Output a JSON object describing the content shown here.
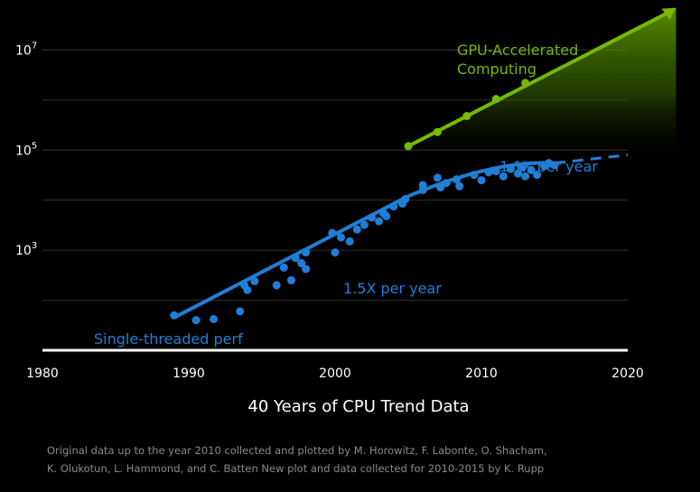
{
  "chart_data": {
    "type": "scatter",
    "title": "40 Years of CPU Trend Data",
    "xlim": [
      1980,
      2020
    ],
    "ylim_log10": [
      1.0,
      8.0
    ],
    "y_scale": "log",
    "x_ticks": [
      "1980",
      "1990",
      "2000",
      "2010",
      "2020"
    ],
    "y_ticks": [
      {
        "value": 1000,
        "base": "10",
        "exp": "3"
      },
      {
        "value": 100000,
        "base": "10",
        "exp": "5"
      },
      {
        "value": 10000000,
        "base": "10",
        "exp": "7"
      }
    ],
    "grid": true,
    "series": [
      {
        "name": "Single-threaded perf",
        "color": "#1f7fd6",
        "points": [
          [
            1989,
            50
          ],
          [
            1990.5,
            40
          ],
          [
            1991.7,
            42
          ],
          [
            1993.5,
            60
          ],
          [
            1993.8,
            200
          ],
          [
            1994,
            160
          ],
          [
            1994.5,
            240
          ],
          [
            1996,
            200
          ],
          [
            1996.5,
            450
          ],
          [
            1997,
            250
          ],
          [
            1997.3,
            700
          ],
          [
            1997.7,
            550
          ],
          [
            1998,
            900
          ],
          [
            1998,
            420
          ],
          [
            1999.8,
            2200
          ],
          [
            2000,
            900
          ],
          [
            2000.4,
            1800
          ],
          [
            2001,
            1500
          ],
          [
            2001.5,
            2600
          ],
          [
            2002,
            3200
          ],
          [
            2002.5,
            4500
          ],
          [
            2003,
            3800
          ],
          [
            2003.3,
            5500
          ],
          [
            2003.5,
            4800
          ],
          [
            2004,
            7500
          ],
          [
            2004.6,
            8500
          ],
          [
            2004.8,
            10500
          ],
          [
            2006,
            20000
          ],
          [
            2006,
            16000
          ],
          [
            2007,
            28000
          ],
          [
            2007.2,
            18000
          ],
          [
            2007.6,
            22000
          ],
          [
            2008.3,
            26000
          ],
          [
            2008.5,
            19000
          ],
          [
            2009.5,
            32000
          ],
          [
            2010,
            25000
          ],
          [
            2010.5,
            36000
          ],
          [
            2011,
            38000
          ],
          [
            2011.5,
            30000
          ],
          [
            2012,
            42000
          ],
          [
            2012.5,
            34000
          ],
          [
            2012.8,
            45000
          ],
          [
            2013,
            30000
          ],
          [
            2013.4,
            40000
          ],
          [
            2013.8,
            32000
          ],
          [
            2014.3,
            48000
          ],
          [
            2014.6,
            55000
          ],
          [
            2015,
            50000
          ]
        ]
      },
      {
        "name": "GPU-Accelerated Computing",
        "color": "#76b900",
        "points": [
          [
            2005,
            120000
          ],
          [
            2007,
            230000
          ],
          [
            2009,
            480000
          ],
          [
            2011,
            1050000
          ],
          [
            2013,
            2200000
          ]
        ]
      }
    ],
    "trend_lines": [
      {
        "label": "1.5X per year",
        "from": [
          1989,
          45
        ],
        "to": [
          2005,
          12000
        ],
        "style": "solid"
      },
      {
        "label": "1.1X per year",
        "from": [
          2005,
          12000
        ],
        "to": [
          2015,
          55000
        ],
        "style": "solid"
      },
      {
        "label": "",
        "from": [
          2015,
          55000
        ],
        "to": [
          2020,
          80000
        ],
        "style": "dashed"
      }
    ],
    "gpu_trend": {
      "from": [
        2005,
        120000
      ],
      "to": [
        2023.3,
        70000000
      ]
    },
    "annotations": [
      {
        "text": "Single-threaded perf",
        "color": "#1f7fd6"
      },
      {
        "text": "1.5X per year",
        "color": "#1f7fd6"
      },
      {
        "text": "1.1X per year",
        "color": "#1f7fd6"
      },
      {
        "text": "GPU-Accelerated",
        "color": "#76b900"
      },
      {
        "text": "Computing",
        "color": "#76b900"
      }
    ],
    "footnote_lines": [
      "Original data up to the year 2010 collected and plotted by M. Horowitz, F. Labonte, O. Shacham,",
      "K. Olukotun, L. Hammond, and C. Batten New plot and data collected for 2010-2015 by K. Rupp"
    ]
  }
}
